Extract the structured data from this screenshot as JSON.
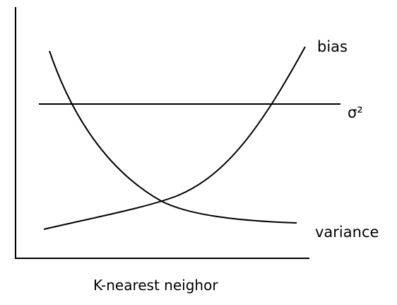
{
  "chart_data": {
    "type": "line",
    "title": "",
    "xlabel": "K-nearest neighor",
    "ylabel": "",
    "grid": false,
    "legend": "none",
    "series": [
      {
        "name": "bias",
        "shape": "increasing-convex"
      },
      {
        "name": "σ²",
        "shape": "constant"
      },
      {
        "name": "variance",
        "shape": "decreasing-convex"
      }
    ]
  }
}
